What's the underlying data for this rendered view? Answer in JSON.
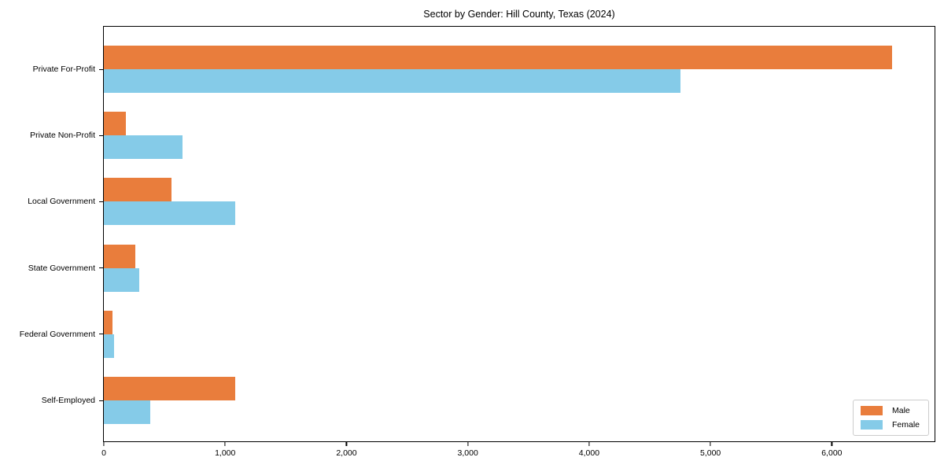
{
  "title": "Sector by Gender: Hill County, Texas (2024)",
  "chart_data": {
    "type": "bar",
    "orientation": "horizontal",
    "title": "Sector by Gender: Hill County, Texas (2024)",
    "categories": [
      "Private For-Profit",
      "Private Non-Profit",
      "Local Government",
      "State Government",
      "Federal Government",
      "Self-Employed"
    ],
    "series": [
      {
        "name": "Male",
        "color": "#e97d3c",
        "values": [
          6500,
          180,
          560,
          260,
          70,
          1080
        ]
      },
      {
        "name": "Female",
        "color": "#85cbe8",
        "values": [
          4750,
          650,
          1080,
          290,
          85,
          380
        ]
      }
    ],
    "xlabel": "",
    "ylabel": "",
    "xlim": [
      0,
      6860
    ],
    "xticks": [
      0,
      1000,
      2000,
      3000,
      4000,
      5000,
      6000
    ],
    "xtick_labels": [
      "0",
      "1,000",
      "2,000",
      "3,000",
      "4,000",
      "5,000",
      "6,000"
    ],
    "grid": false,
    "legend": {
      "position": "lower right",
      "entries": [
        "Male",
        "Female"
      ]
    }
  }
}
